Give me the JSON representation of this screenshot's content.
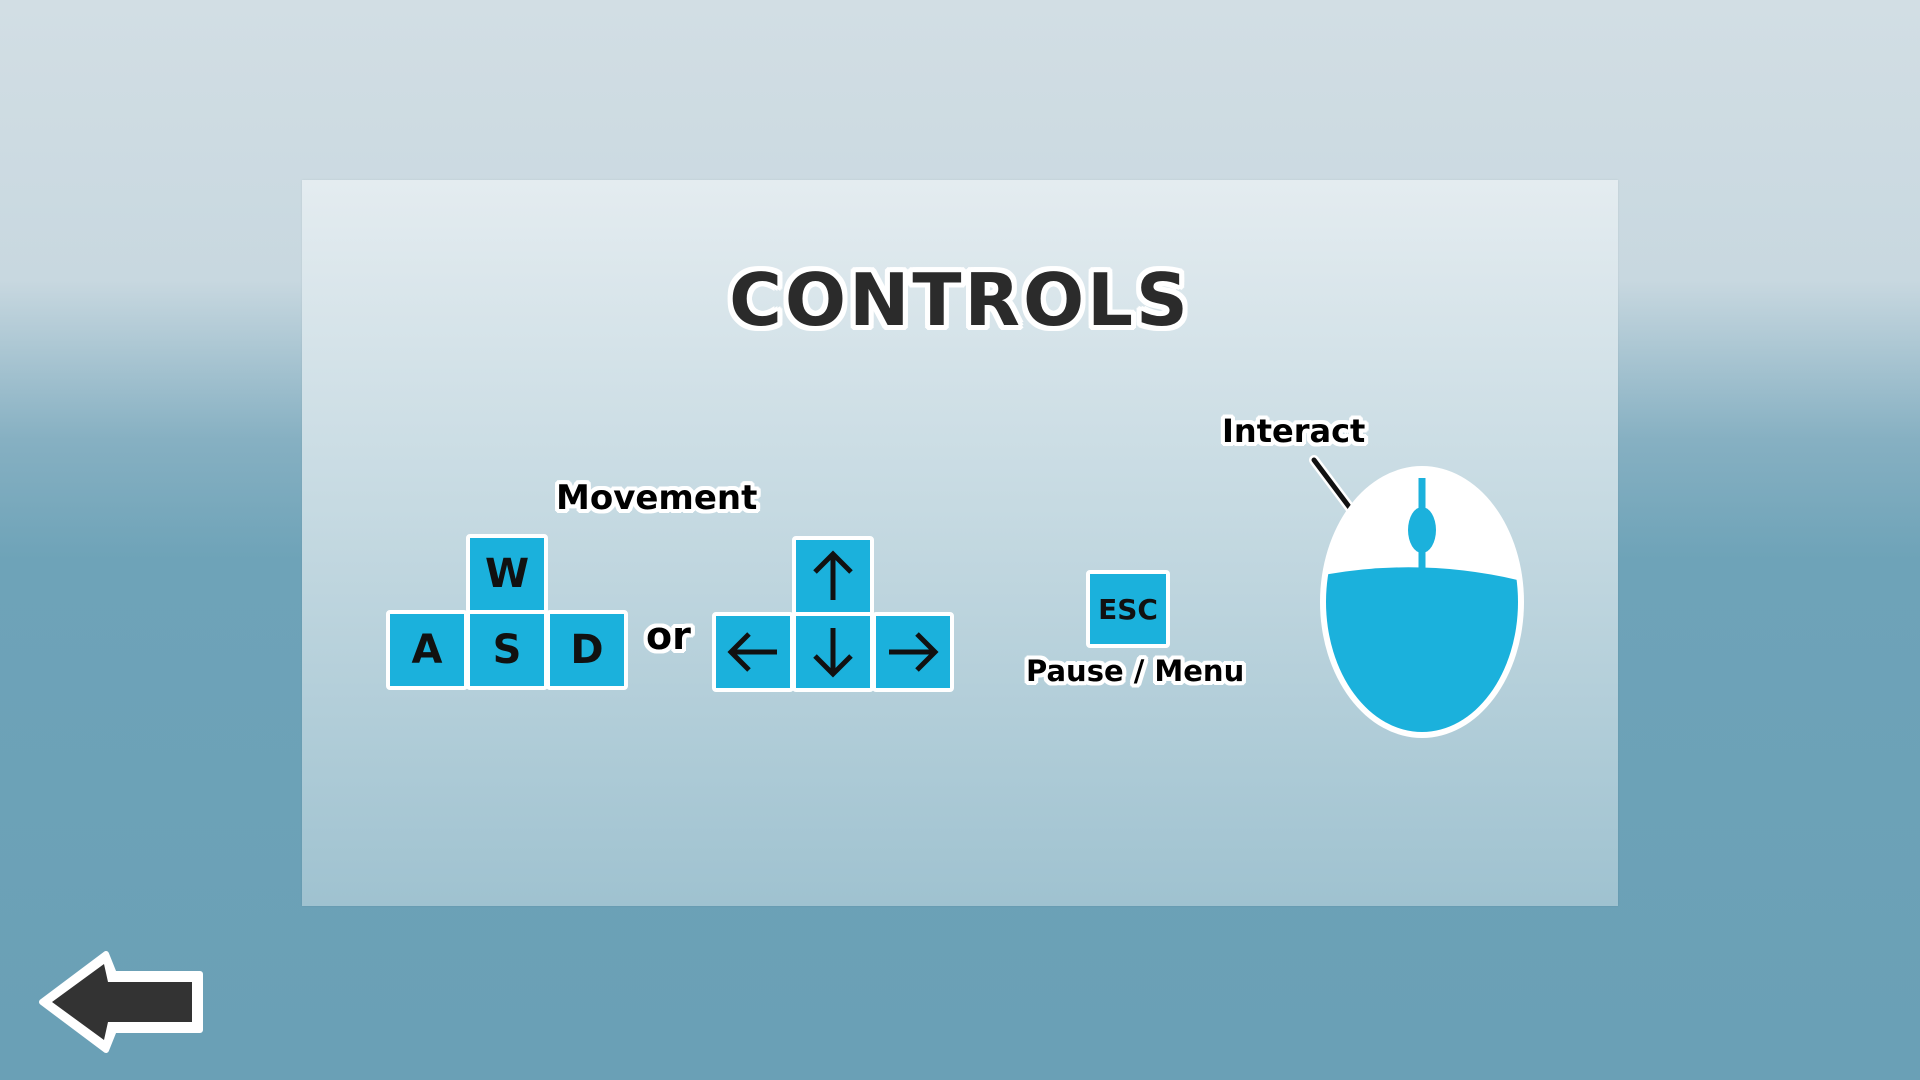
{
  "screen": {
    "title": "CONTROLS"
  },
  "movement": {
    "label": "Movement",
    "wasd_keys": {
      "up": "W",
      "left": "A",
      "down": "S",
      "right": "D"
    },
    "separator": "or",
    "arrow_keys": {
      "up": "arrow-up-icon",
      "left": "arrow-left-icon",
      "down": "arrow-down-icon",
      "right": "arrow-right-icon"
    }
  },
  "pause": {
    "key": "ESC",
    "label": "Pause / Menu"
  },
  "interact": {
    "label": "Interact",
    "icon": "mouse-left-click-icon"
  },
  "navigation": {
    "back_icon": "back-arrow-icon"
  },
  "colors": {
    "key_fill": "#1bb1dc",
    "key_border": "#ffffff",
    "text": "#000000",
    "title": "#2b2b2b",
    "back_arrow": "#333333"
  }
}
